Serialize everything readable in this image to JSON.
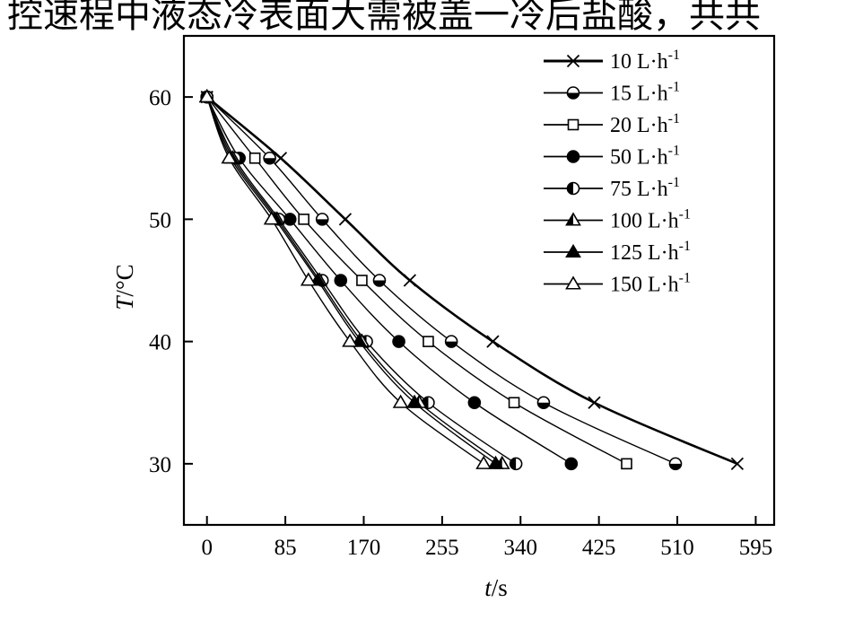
{
  "page_text": {
    "top_caption": "控速程中液态冷表面大需被盖一冷后盐酸，共共"
  },
  "chart_data": {
    "type": "line",
    "title": "",
    "xlabel": "t/s",
    "ylabel": "T/°C",
    "xlabel_parts": {
      "var": "t",
      "unit": "/s"
    },
    "ylabel_parts": {
      "var": "T",
      "unit": "/°C"
    },
    "xlim": [
      -25,
      615
    ],
    "ylim": [
      25,
      65
    ],
    "xticks": [
      0,
      85,
      170,
      255,
      340,
      425,
      510,
      595
    ],
    "yticks": [
      30,
      40,
      50,
      60
    ],
    "grid": false,
    "legend_position": "top-right",
    "series": [
      {
        "name": "10 L·h",
        "sup": "-1",
        "marker": "cross",
        "line_width": 2.6,
        "x": [
          0,
          80,
          150,
          220,
          310,
          420,
          575
        ],
        "y": [
          60,
          55,
          50,
          45,
          40,
          35,
          30
        ]
      },
      {
        "name": "15 L·h",
        "sup": "-1",
        "marker": "circle-half-bottom",
        "line_width": 1.4,
        "x": [
          0,
          68,
          125,
          187,
          265,
          365,
          508
        ],
        "y": [
          60,
          55,
          50,
          45,
          40,
          35,
          30
        ]
      },
      {
        "name": "20 L·h",
        "sup": "-1",
        "marker": "square-open",
        "line_width": 1.4,
        "x": [
          0,
          52,
          105,
          168,
          240,
          333,
          455
        ],
        "y": [
          60,
          55,
          50,
          45,
          40,
          35,
          30
        ]
      },
      {
        "name": "50 L·h",
        "sup": "-1",
        "marker": "circle-filled",
        "line_width": 1.4,
        "x": [
          0,
          35,
          90,
          145,
          208,
          290,
          395
        ],
        "y": [
          60,
          55,
          50,
          45,
          40,
          35,
          30
        ]
      },
      {
        "name": "75 L·h",
        "sup": "-1",
        "marker": "circle-half-left",
        "line_width": 1.4,
        "x": [
          0,
          30,
          78,
          125,
          173,
          240,
          335
        ],
        "y": [
          60,
          55,
          50,
          45,
          40,
          35,
          30
        ]
      },
      {
        "name": "100 L·h",
        "sup": "-1",
        "marker": "triangle-half",
        "line_width": 1.4,
        "x": [
          0,
          28,
          76,
          122,
          168,
          230,
          320
        ],
        "y": [
          60,
          55,
          50,
          45,
          40,
          35,
          30
        ]
      },
      {
        "name": "125 L·h",
        "sup": "-1",
        "marker": "triangle-filled",
        "line_width": 1.4,
        "x": [
          0,
          26,
          74,
          120,
          165,
          225,
          313
        ],
        "y": [
          60,
          55,
          50,
          45,
          40,
          35,
          30
        ]
      },
      {
        "name": "150 L·h",
        "sup": "-1",
        "marker": "triangle-open",
        "line_width": 1.4,
        "x": [
          0,
          24,
          70,
          110,
          155,
          210,
          300
        ],
        "y": [
          60,
          55,
          50,
          45,
          40,
          35,
          30
        ]
      }
    ]
  }
}
